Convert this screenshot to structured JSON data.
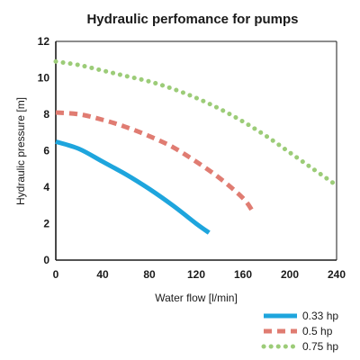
{
  "chart_data": {
    "type": "line",
    "title": "Hydraulic perfomance for pumps",
    "xlabel": "Water flow [l/min]",
    "ylabel": "Hydraulic pressure [m]",
    "xlim": [
      0,
      240
    ],
    "ylim": [
      0,
      12
    ],
    "xticks": [
      0,
      40,
      80,
      120,
      160,
      200,
      240
    ],
    "yticks": [
      0,
      2,
      4,
      6,
      8,
      10,
      12
    ],
    "grid": false,
    "legend_position": "bottom-right",
    "series": [
      {
        "name": "0.33 hp",
        "color": "#1ea5dd",
        "style": "solid",
        "points": [
          [
            0,
            6.5
          ],
          [
            20,
            6.1
          ],
          [
            40,
            5.4
          ],
          [
            60,
            4.7
          ],
          [
            80,
            3.9
          ],
          [
            100,
            3.0
          ],
          [
            120,
            2.0
          ],
          [
            131,
            1.5
          ]
        ]
      },
      {
        "name": "0.5 hp",
        "color": "#e07c72",
        "style": "dashed",
        "points": [
          [
            0,
            8.1
          ],
          [
            20,
            8.0
          ],
          [
            40,
            7.7
          ],
          [
            60,
            7.3
          ],
          [
            80,
            6.8
          ],
          [
            100,
            6.2
          ],
          [
            120,
            5.4
          ],
          [
            140,
            4.5
          ],
          [
            160,
            3.4
          ],
          [
            168,
            2.7
          ]
        ]
      },
      {
        "name": "0.75 hp",
        "color": "#9ccc78",
        "style": "dotted",
        "points": [
          [
            0,
            10.9
          ],
          [
            20,
            10.7
          ],
          [
            40,
            10.4
          ],
          [
            60,
            10.1
          ],
          [
            80,
            9.8
          ],
          [
            100,
            9.4
          ],
          [
            120,
            8.9
          ],
          [
            140,
            8.3
          ],
          [
            160,
            7.6
          ],
          [
            180,
            6.8
          ],
          [
            200,
            5.9
          ],
          [
            220,
            5.0
          ],
          [
            240,
            4.1
          ]
        ]
      }
    ]
  }
}
